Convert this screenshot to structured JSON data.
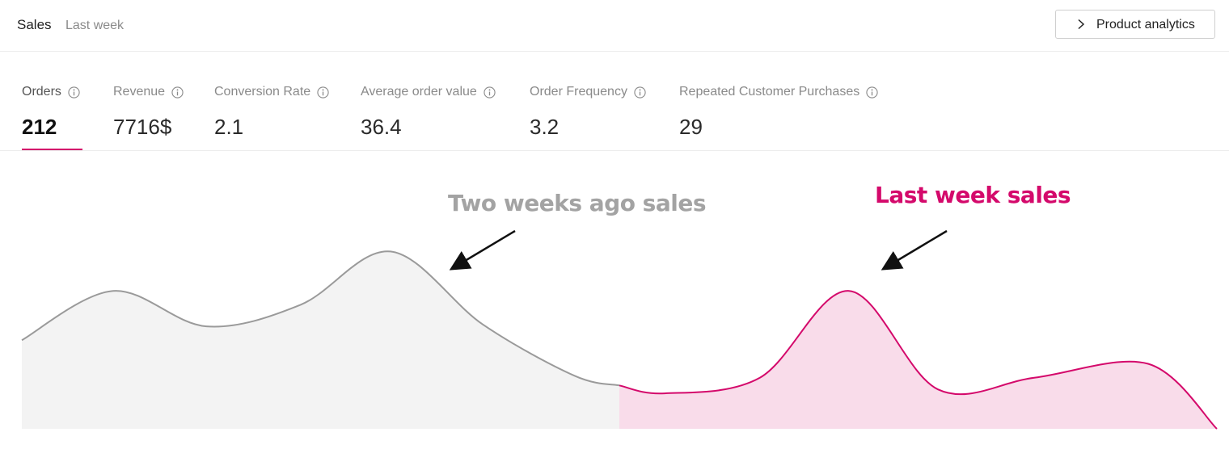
{
  "header": {
    "title": "Sales",
    "subtitle": "Last week",
    "product_analytics_label": "Product analytics"
  },
  "metrics": [
    {
      "label": "Orders",
      "value": "212",
      "active": true
    },
    {
      "label": "Revenue",
      "value": "7716$",
      "active": false
    },
    {
      "label": "Conversion Rate",
      "value": "2.1",
      "active": false
    },
    {
      "label": "Average order value",
      "value": "36.4",
      "active": false
    },
    {
      "label": "Order Frequency",
      "value": "3.2",
      "active": false
    },
    {
      "label": "Repeated Customer Purchases",
      "value": "29",
      "active": false
    }
  ],
  "icons": {
    "info": "info-icon",
    "chevron": "chevron-right-icon",
    "arrow": "arrow-icon"
  },
  "colors": {
    "accent": "#d4096b",
    "accent_fill": "#f9dcea",
    "previous_line": "#9a9a9a",
    "previous_fill": "#f3f3f3"
  },
  "annotations": {
    "previous": "Two weeks ago sales",
    "current": "Last week sales"
  },
  "chart_data": {
    "type": "area",
    "grid": false,
    "legend": "none",
    "series": [
      {
        "name": "Two weeks ago sales",
        "values": [
          0.45,
          0.7,
          0.52,
          0.63,
          0.9,
          0.53,
          0.27,
          0.22
        ]
      },
      {
        "name": "Last week sales",
        "values": [
          0.22,
          0.18,
          0.26,
          0.7,
          0.2,
          0.26,
          0.33,
          0.0
        ]
      }
    ]
  }
}
